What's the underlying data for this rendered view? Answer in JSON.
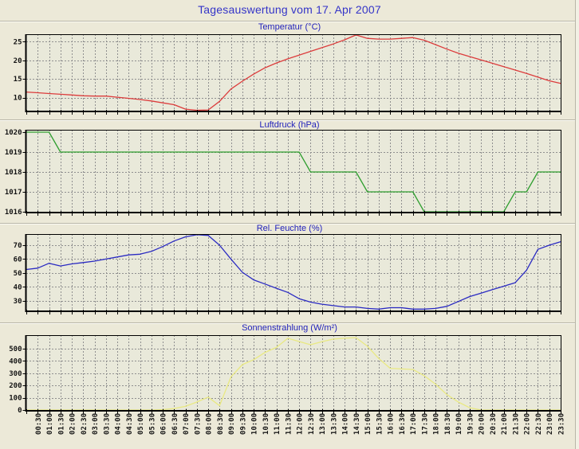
{
  "page": {
    "title": "Tagesauswertung vom 17. Apr 2007"
  },
  "time_labels": [
    "00:30",
    "01:00",
    "01:30",
    "02:00",
    "02:30",
    "03:00",
    "03:30",
    "04:00",
    "04:30",
    "05:00",
    "05:30",
    "06:00",
    "06:30",
    "07:00",
    "07:30",
    "08:00",
    "08:30",
    "09:00",
    "09:30",
    "10:00",
    "10:30",
    "11:00",
    "11:30",
    "12:00",
    "12:30",
    "13:00",
    "13:30",
    "14:00",
    "14:30",
    "15:00",
    "15:30",
    "16:00",
    "16:30",
    "17:00",
    "17:30",
    "18:00",
    "18:30",
    "19:00",
    "19:30",
    "20:00",
    "20:30",
    "21:00",
    "21:30",
    "22:00",
    "22:30",
    "23:00",
    "23:30"
  ],
  "chart_data": [
    {
      "type": "line",
      "title": "Temperatur (°C)",
      "series_color": "#dc3c3c",
      "x_start": "00:00",
      "x_step_minutes": 30,
      "ylim": [
        6.5,
        27
      ],
      "yticks": [
        10,
        15,
        20,
        25
      ],
      "ygrid": [
        10,
        15,
        20,
        25
      ],
      "grid": true,
      "legend": "none",
      "values": [
        11.5,
        11.3,
        11.1,
        10.9,
        10.7,
        10.5,
        10.4,
        10.4,
        10.1,
        9.8,
        9.5,
        9.1,
        8.6,
        8.1,
        6.9,
        6.6,
        6.7,
        9.0,
        12.3,
        14.4,
        16.3,
        18.0,
        19.3,
        20.4,
        21.4,
        22.4,
        23.4,
        24.4,
        25.5,
        26.8,
        25.9,
        25.7,
        25.7,
        25.9,
        26.1,
        25.4,
        24.2,
        23.0,
        21.9,
        21.0,
        20.1,
        19.2,
        18.3,
        17.4,
        16.5,
        15.5,
        14.5,
        13.8
      ]
    },
    {
      "type": "line",
      "title": "Luftdruck (hPa)",
      "series_color": "#2f9e2f",
      "x_start": "00:00",
      "x_step_minutes": 30,
      "ylim": [
        1016,
        1020.12
      ],
      "yticks": [
        1016,
        1017,
        1018,
        1019,
        1020
      ],
      "ygrid": [
        1017,
        1018,
        1019
      ],
      "grid": true,
      "legend": "none",
      "values": [
        1020,
        1020,
        1020,
        1019,
        1019,
        1019,
        1019,
        1019,
        1019,
        1019,
        1019,
        1019,
        1019,
        1019,
        1019,
        1019,
        1019,
        1019,
        1019,
        1019,
        1019,
        1019,
        1019,
        1019,
        1019,
        1018,
        1018,
        1018,
        1018,
        1018,
        1017,
        1017,
        1017,
        1017,
        1017,
        1016,
        1016,
        1016,
        1016,
        1016,
        1016,
        1016,
        1016,
        1017,
        1017,
        1018,
        1018,
        1018
      ]
    },
    {
      "type": "line",
      "title": "Rel. Feuchte (%)",
      "series_color": "#2a2ac2",
      "x_start": "00:00",
      "x_step_minutes": 30,
      "ylim": [
        23,
        78
      ],
      "yticks": [
        30,
        40,
        50,
        60,
        70
      ],
      "ygrid": [
        30,
        40,
        50,
        60,
        70
      ],
      "grid": true,
      "legend": "none",
      "values": [
        52.5,
        53.5,
        57.0,
        55.0,
        56.5,
        57.5,
        58.5,
        60.0,
        61.5,
        63.0,
        63.5,
        65.5,
        69.0,
        73.0,
        76.0,
        77.5,
        77.0,
        70.0,
        60.0,
        50.5,
        45.0,
        42.0,
        39.0,
        36.0,
        31.5,
        29.0,
        27.5,
        26.5,
        25.5,
        25.5,
        24.5,
        24.0,
        25.0,
        25.0,
        24.0,
        24.0,
        24.5,
        26.0,
        29.5,
        33.0,
        35.5,
        38.0,
        40.5,
        43.0,
        52.0,
        67.0,
        70.0,
        72.5
      ]
    },
    {
      "type": "line",
      "title": "Sonnenstrahlung (W/m²)",
      "series_color": "#e9e982",
      "x_start": "00:00",
      "x_step_minutes": 30,
      "ylim": [
        0,
        610
      ],
      "yticks": [
        0,
        100,
        200,
        300,
        400,
        500
      ],
      "ygrid": [
        100,
        200,
        300,
        400,
        500
      ],
      "grid": true,
      "legend": "none",
      "values": [
        0,
        0,
        0,
        0,
        0,
        0,
        0,
        0,
        0,
        0,
        0,
        0,
        3,
        12,
        30,
        65,
        105,
        35,
        270,
        370,
        410,
        470,
        510,
        585,
        558,
        532,
        556,
        578,
        585,
        590,
        520,
        420,
        340,
        335,
        330,
        280,
        210,
        125,
        65,
        18,
        0,
        0,
        0,
        0,
        0,
        0,
        0,
        0
      ]
    }
  ]
}
